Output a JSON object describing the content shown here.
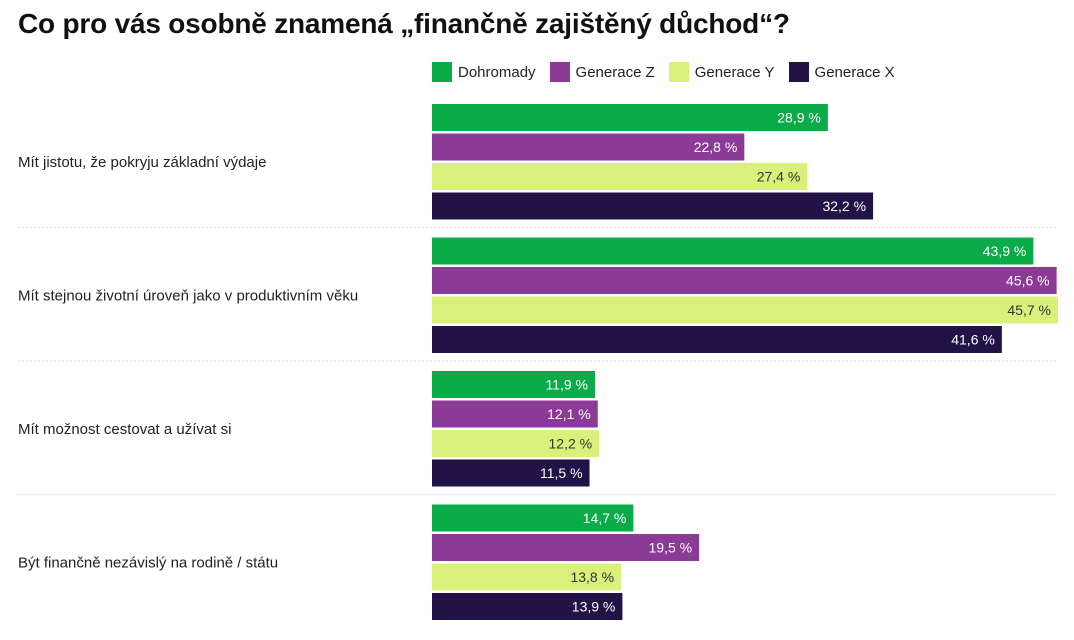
{
  "chart_data": {
    "type": "bar",
    "orientation": "horizontal",
    "title": "Co pro vás osobně znamená „finančně zajištěný důchod“?",
    "categories": [
      "Mít jistotu, že pokryju základní výdaje",
      "Mít stejnou životní úroveň jako v produktivním věku",
      "Mít možnost cestovat a užívat si",
      "Být finančně nezávislý na rodině / státu"
    ],
    "series": [
      {
        "name": "Dohromady",
        "color": "#0aab48",
        "text_color": "#ffffff",
        "values": [
          28.9,
          43.9,
          11.9,
          14.7
        ],
        "labels": [
          "28,9 %",
          "43,9 %",
          "11,9 %",
          "14,7 %"
        ]
      },
      {
        "name": "Generace Z",
        "color": "#8b3a96",
        "text_color": "#ffffff",
        "values": [
          22.8,
          45.6,
          12.1,
          19.5
        ],
        "labels": [
          "22,8 %",
          "45,6 %",
          "12,1 %",
          "19,5 %"
        ]
      },
      {
        "name": "Generace Y",
        "color": "#d9f07a",
        "text_color": "#333333",
        "values": [
          27.4,
          45.7,
          12.2,
          13.8
        ],
        "labels": [
          "27,4 %",
          "45,7 %",
          "12,2 %",
          "13,8 %"
        ]
      },
      {
        "name": "Generace X",
        "color": "#221347",
        "text_color": "#ffffff",
        "values": [
          32.2,
          41.6,
          11.5,
          13.9
        ],
        "labels": [
          "32,2 %",
          "41,6 %",
          "11,5 %",
          "13,9 %"
        ]
      }
    ],
    "xlim": [
      0,
      45.7
    ],
    "legend_position": "top",
    "grid": false
  }
}
